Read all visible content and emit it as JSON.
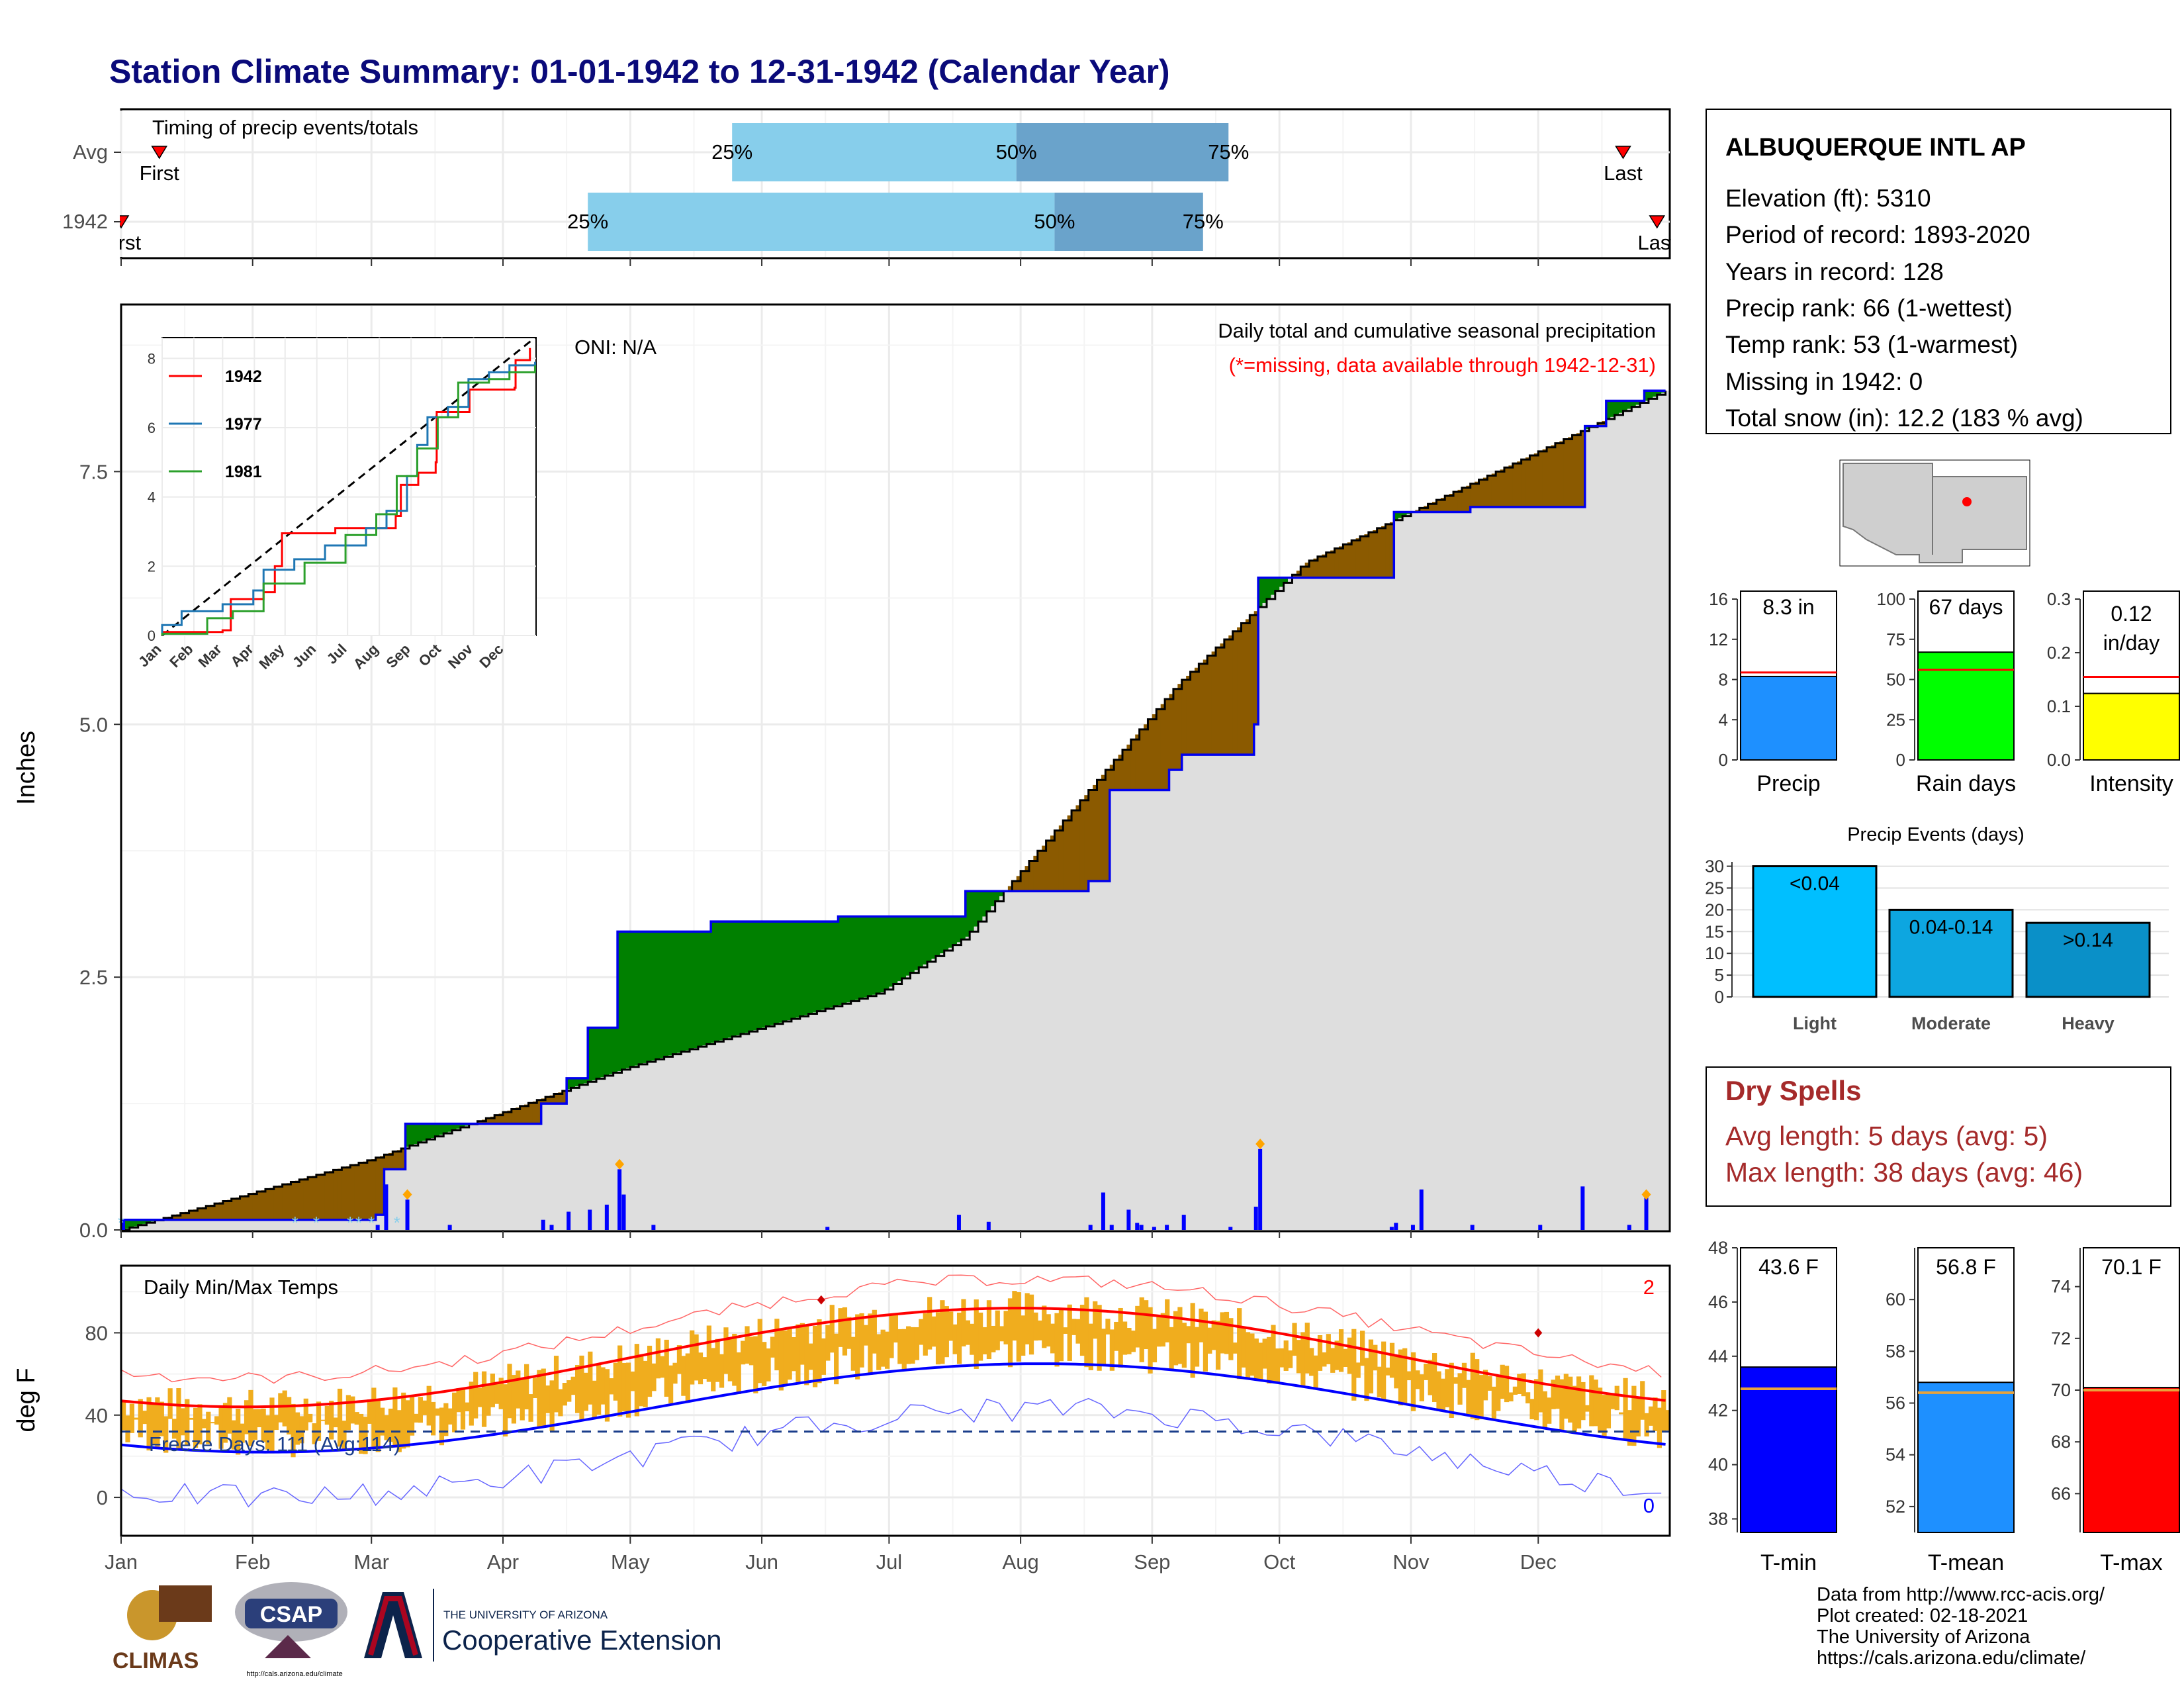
{
  "title": "Station Climate Summary: 01-01-1942 to 12-31-1942 (Calendar Year)",
  "colors": {
    "title": "#0a0a7a",
    "brown": "#8b5a00",
    "green": "#008000",
    "blue_line": "#0000ee",
    "gray_fill": "#dedede",
    "light_blue": "#87ceeb",
    "mid_blue": "#6aa3cb",
    "tmax": "#ff0000",
    "tmin": "#0000ff",
    "orange": "#f0ad1e",
    "red_text": "#ff0000",
    "dry_text": "#a52a2a"
  },
  "months": [
    "Jan",
    "Feb",
    "Mar",
    "Apr",
    "May",
    "Jun",
    "Jul",
    "Aug",
    "Sep",
    "Oct",
    "Nov",
    "Dec"
  ],
  "timing_panel": {
    "label": "Timing of precip events/totals",
    "rows": [
      {
        "name": "Avg",
        "p25_doy": 145,
        "p50_doy": 212,
        "p75_doy": 262,
        "first_doy": 10,
        "last_doy": 355
      },
      {
        "name": "1942",
        "p25_doy": 111,
        "p50_doy": 221,
        "p75_doy": 256,
        "first_doy": 1,
        "last_doy": 363
      }
    ],
    "pct_labels": [
      "25%",
      "50%",
      "75%"
    ],
    "first_label": "First",
    "last_label": "Last"
  },
  "precip_panel": {
    "ylabel": "Inches",
    "y_ticks": [
      "0.0",
      "2.5",
      "5.0",
      "7.5"
    ],
    "ylim": [
      0,
      9.1
    ],
    "title": "Daily total and cumulative seasonal precipitation",
    "note": "(*=missing, data available through 1942-12-31)",
    "oni": "ONI: N/A",
    "cum_1942_steps": [
      [
        1,
        0.1
      ],
      [
        61,
        0.15
      ],
      [
        63,
        0.6
      ],
      [
        68,
        1.05
      ],
      [
        86,
        1.05
      ],
      [
        100,
        1.25
      ],
      [
        106,
        1.5
      ],
      [
        111,
        2.0
      ],
      [
        118,
        2.95
      ],
      [
        140,
        3.05
      ],
      [
        170,
        3.1
      ],
      [
        200,
        3.35
      ],
      [
        229,
        3.45
      ],
      [
        234,
        4.35
      ],
      [
        248,
        4.55
      ],
      [
        251,
        4.7
      ],
      [
        268,
        5.0
      ],
      [
        269,
        6.45
      ],
      [
        285,
        6.45
      ],
      [
        301,
        7.1
      ],
      [
        319,
        7.15
      ],
      [
        345,
        7.15
      ],
      [
        346,
        7.95
      ],
      [
        350,
        7.95
      ],
      [
        351,
        8.2
      ],
      [
        360,
        8.3
      ]
    ],
    "avg_cum": [
      [
        1,
        0
      ],
      [
        60,
        0.7
      ],
      [
        120,
        1.6
      ],
      [
        180,
        2.35
      ],
      [
        200,
        2.9
      ],
      [
        220,
        3.9
      ],
      [
        250,
        5.4
      ],
      [
        280,
        6.6
      ],
      [
        330,
        7.6
      ],
      [
        365,
        8.3
      ]
    ],
    "daily_bars": [
      [
        1,
        0.1
      ],
      [
        61,
        0.05
      ],
      [
        63,
        0.45
      ],
      [
        68,
        0.3
      ],
      [
        78,
        0.05
      ],
      [
        100,
        0.1
      ],
      [
        102,
        0.05
      ],
      [
        106,
        0.18
      ],
      [
        111,
        0.2
      ],
      [
        115,
        0.25
      ],
      [
        118,
        0.6
      ],
      [
        119,
        0.35
      ],
      [
        126,
        0.05
      ],
      [
        167,
        0.03
      ],
      [
        198,
        0.15
      ],
      [
        205,
        0.08
      ],
      [
        229,
        0.05
      ],
      [
        232,
        0.37
      ],
      [
        234,
        0.05
      ],
      [
        238,
        0.2
      ],
      [
        240,
        0.07
      ],
      [
        241,
        0.05
      ],
      [
        244,
        0.03
      ],
      [
        247,
        0.05
      ],
      [
        251,
        0.15
      ],
      [
        262,
        0.03
      ],
      [
        268,
        0.23
      ],
      [
        269,
        0.8
      ],
      [
        301,
        0.07
      ],
      [
        305,
        0.05
      ],
      [
        307,
        0.4
      ],
      [
        319,
        0.05
      ],
      [
        300,
        0.03
      ],
      [
        335,
        0.05
      ],
      [
        345,
        0.43
      ],
      [
        356,
        0.05
      ],
      [
        360,
        0.32
      ]
    ],
    "extreme_markers": [
      [
        68,
        0.35
      ],
      [
        118,
        0.65
      ],
      [
        269,
        0.85
      ],
      [
        360,
        0.35
      ]
    ],
    "snow_markers": [
      1,
      42,
      47,
      55,
      57,
      60,
      66
    ],
    "inset": {
      "series": [
        {
          "name": "1942",
          "color": "#ff0000",
          "points": [
            [
              1,
              0.1
            ],
            [
              60,
              0.15
            ],
            [
              68,
              1.05
            ],
            [
              100,
              1.25
            ],
            [
              111,
              2.0
            ],
            [
              118,
              2.95
            ],
            [
              170,
              3.1
            ],
            [
              229,
              3.45
            ],
            [
              234,
              4.35
            ],
            [
              251,
              4.7
            ],
            [
              268,
              5.0
            ],
            [
              269,
              6.45
            ],
            [
              301,
              7.1
            ],
            [
              345,
              7.15
            ],
            [
              346,
              7.95
            ],
            [
              360,
              8.3
            ]
          ]
        },
        {
          "name": "1977",
          "color": "#1f77b4",
          "points": [
            [
              1,
              0.3
            ],
            [
              20,
              0.7
            ],
            [
              60,
              0.9
            ],
            [
              90,
              1.3
            ],
            [
              100,
              1.9
            ],
            [
              130,
              2.2
            ],
            [
              160,
              2.6
            ],
            [
              200,
              3.1
            ],
            [
              220,
              3.6
            ],
            [
              240,
              4.6
            ],
            [
              250,
              5.5
            ],
            [
              260,
              6.3
            ],
            [
              280,
              6.6
            ],
            [
              300,
              7.4
            ],
            [
              320,
              7.6
            ],
            [
              340,
              7.8
            ],
            [
              365,
              7.9
            ]
          ]
        },
        {
          "name": "1981",
          "color": "#2ca02c",
          "points": [
            [
              1,
              0.05
            ],
            [
              45,
              0.5
            ],
            [
              70,
              0.7
            ],
            [
              100,
              1.5
            ],
            [
              140,
              2.1
            ],
            [
              180,
              2.9
            ],
            [
              210,
              3.5
            ],
            [
              230,
              4.6
            ],
            [
              250,
              5.4
            ],
            [
              270,
              6.3
            ],
            [
              290,
              7.3
            ],
            [
              320,
              7.4
            ],
            [
              340,
              7.6
            ],
            [
              365,
              7.8
            ]
          ]
        }
      ],
      "y_ticks": [
        "0",
        "2",
        "4",
        "6",
        "8"
      ],
      "months": [
        "Jan",
        "Feb",
        "Mar",
        "Apr",
        "May",
        "Jun",
        "Jul",
        "Aug",
        "Sep",
        "Oct",
        "Nov",
        "Dec"
      ]
    }
  },
  "temp_panel": {
    "ylabel": "deg F",
    "label": "Daily Min/Max Temps",
    "y_ticks": [
      "0",
      "40",
      "80"
    ],
    "ylim": [
      -18,
      112
    ],
    "freeze_label": "Freeze Days: 111 (Avg:114)",
    "freeze_line": 32,
    "count_top": "2",
    "count_bottom": "0",
    "avg_max_peak": 92,
    "avg_max_low": 44,
    "avg_min_peak": 65,
    "avg_min_low": 22
  },
  "station": {
    "name": "ALBUQUERQUE INTL AP",
    "lines": [
      "Elevation (ft): 5310",
      "Period of record: 1893-2020",
      "Years in record: 128",
      "Precip rank: 66 (1-wettest)",
      "Temp rank: 53 (1-warmest)",
      "Missing in 1942: 0",
      "Total snow (in): 12.2 (183 % avg)"
    ]
  },
  "mini_bars": [
    {
      "label": "Precip",
      "value_text": "8.3 in",
      "value": 8.3,
      "avg": 8.7,
      "ymax": 16,
      "ticks": [
        "0",
        "4",
        "8",
        "12",
        "16"
      ],
      "color": "#1e90ff"
    },
    {
      "label": "Rain days",
      "value_text": "67 days",
      "value": 67,
      "avg": 56,
      "ymax": 100,
      "ticks": [
        "0",
        "25",
        "50",
        "75",
        "100"
      ],
      "color": "#00ff00"
    },
    {
      "label": "Intensity",
      "value_text_1": "0.12",
      "value_text_2": "in/day",
      "value": 0.124,
      "avg": 0.155,
      "ymax": 0.3,
      "ticks": [
        "0.0",
        "0.1",
        "0.2",
        "0.3"
      ],
      "color": "#ffff00"
    }
  ],
  "events": {
    "title": "Precip Events (days)",
    "ticks": [
      "0",
      "5",
      "10",
      "15",
      "20",
      "25",
      "30"
    ],
    "bars": [
      {
        "label": "Light",
        "value": 30,
        "text": "<0.04",
        "color": "#00bfff"
      },
      {
        "label": "Moderate",
        "value": 20,
        "text": "0.04-0.14",
        "color": "#0da6e0"
      },
      {
        "label": "Heavy",
        "value": 17,
        "text": ">0.14",
        "color": "#0a90c8"
      }
    ]
  },
  "dry_spells": {
    "title": "Dry Spells",
    "avg": "Avg length: 5 days (avg: 5)",
    "max": "Max length: 38 days (avg: 46)"
  },
  "temp_bars": [
    {
      "label": "T-min",
      "value_text": "43.6 F",
      "value": 43.6,
      "avg": 42.8,
      "ymin": 37.5,
      "ymax": 48,
      "ticks": [
        "38",
        "40",
        "42",
        "44",
        "46",
        "48"
      ],
      "color": "#0000ff"
    },
    {
      "label": "T-mean",
      "value_text": "56.8 F",
      "value": 56.8,
      "avg": 56.4,
      "ymin": 51,
      "ymax": 62,
      "ticks": [
        "52",
        "54",
        "56",
        "58",
        "60"
      ],
      "color": "#1e90ff"
    },
    {
      "label": "T-max",
      "value_text": "70.1 F",
      "value": 70.1,
      "avg": 70.0,
      "ymin": 64.5,
      "ymax": 75.5,
      "ticks": [
        "66",
        "68",
        "70",
        "72",
        "74"
      ],
      "color": "#ff0000"
    }
  ],
  "footer": {
    "lines": [
      "Data from http://www.rcc-acis.org/",
      "Plot created: 02-18-2021",
      "The University of Arizona",
      "https://cals.arizona.edu/climate/"
    ],
    "climas": "CLIMAS",
    "csap": "CSAP",
    "ua_small": "THE UNIVERSITY OF ARIZONA",
    "ua_big": "Cooperative Extension",
    "csap_url": "http://cals.arizona.edu/climate"
  }
}
